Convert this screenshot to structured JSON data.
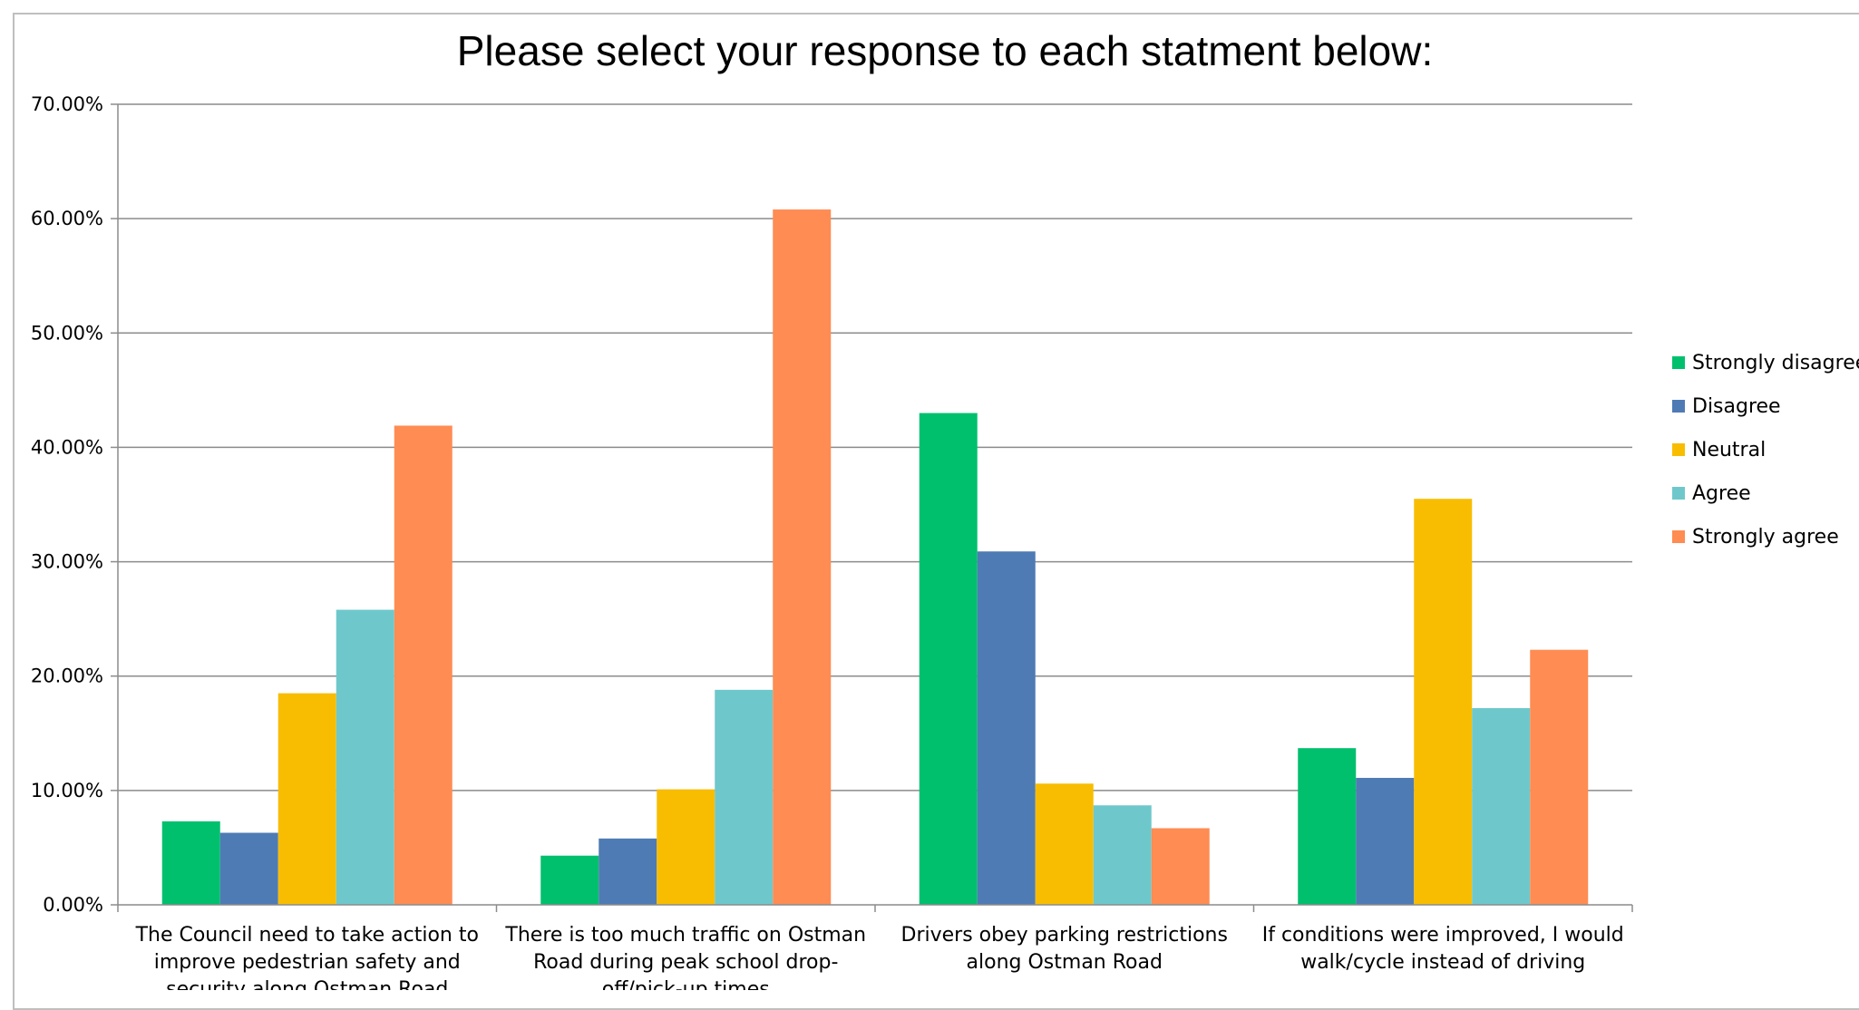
{
  "chart_data": {
    "type": "bar",
    "title": "Please select your response to each statment below:",
    "categories": [
      [
        "The Council need to take action to",
        "improve pedestrian safety and",
        "security along Ostman Road"
      ],
      [
        "There is too much traffic on Ostman",
        "Road during peak school drop-",
        "off/pick-up times"
      ],
      [
        "Drivers obey parking restrictions",
        "along Ostman Road"
      ],
      [
        "If conditions were improved, I would",
        "walk/cycle instead of driving"
      ]
    ],
    "series": [
      {
        "name": "Strongly disagree",
        "color": "#00c06e",
        "values": [
          7.3,
          4.3,
          43.0,
          13.7
        ]
      },
      {
        "name": "Disagree",
        "color": "#4f7bb4",
        "values": [
          6.3,
          5.8,
          30.9,
          11.1
        ]
      },
      {
        "name": "Neutral",
        "color": "#f8bd00",
        "values": [
          18.5,
          10.1,
          10.6,
          35.5
        ]
      },
      {
        "name": "Agree",
        "color": "#6ec8cb",
        "values": [
          25.8,
          18.8,
          8.7,
          17.2
        ]
      },
      {
        "name": "Strongly agree",
        "color": "#fe8c53",
        "values": [
          41.9,
          60.8,
          6.7,
          22.3
        ]
      }
    ],
    "y_ticks": [
      "0.00%",
      "10.00%",
      "20.00%",
      "30.00%",
      "40.00%",
      "50.00%",
      "60.00%",
      "70.00%"
    ],
    "ylim": [
      0,
      70
    ],
    "grid": true,
    "legend_position": "right"
  }
}
